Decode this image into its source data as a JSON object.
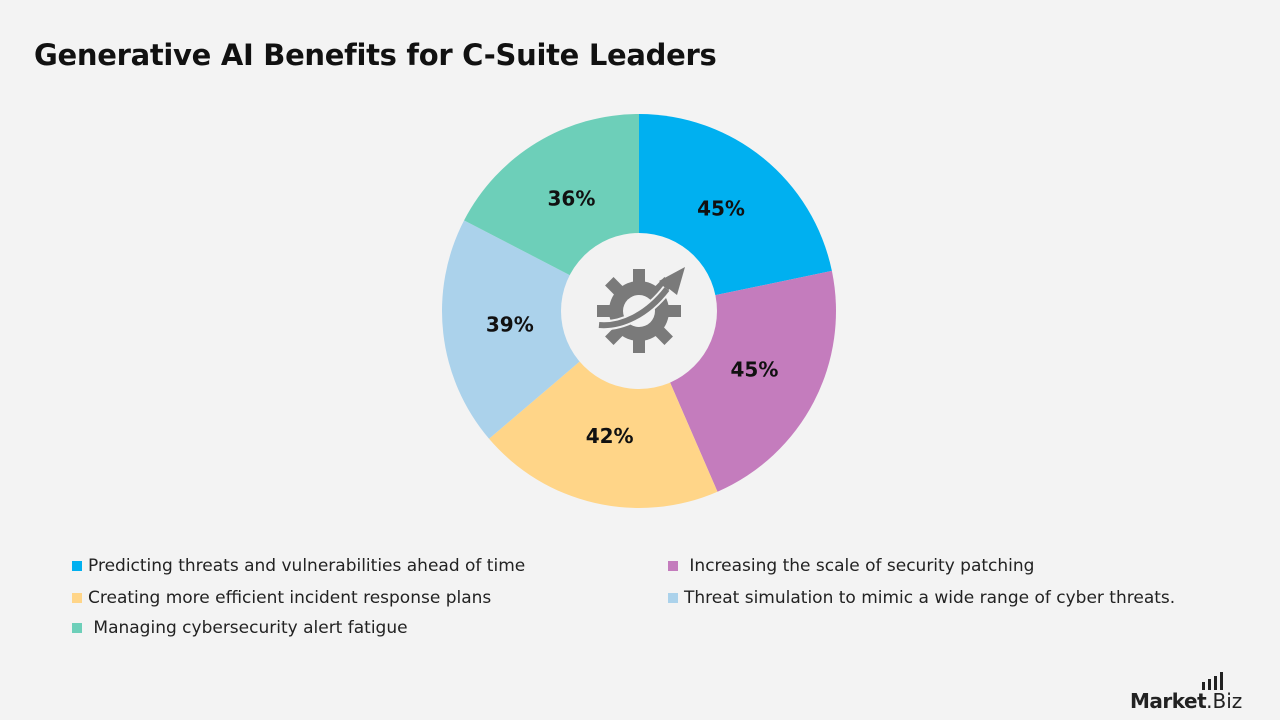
{
  "title": "Generative AI Benefits for C-Suite Leaders",
  "chart_data": {
    "type": "pie",
    "title": "Generative AI Benefits for C-Suite Leaders",
    "series": [
      {
        "name": "Predicting threats and vulnerabilities ahead of time",
        "value": 45,
        "label": "45%",
        "color": "#00b0f0"
      },
      {
        "name": "Increasing the scale of security patching",
        "value": 45,
        "label": "45%",
        "color": "#c47cbd"
      },
      {
        "name": "Creating more efficient incident response plans",
        "value": 42,
        "label": "42%",
        "color": "#ffd588"
      },
      {
        "name": "Threat simulation to mimic a wide range of cyber threats.",
        "value": 39,
        "label": "39%",
        "color": "#abd2eb"
      },
      {
        "name": "Managing cybersecurity alert fatigue",
        "value": 36,
        "label": "36%",
        "color": "#6dcfb9"
      }
    ],
    "legend_position": "bottom",
    "center_icon": "gear-arrow-icon"
  },
  "legend": [
    {
      "label": "Predicting threats and vulnerabilities ahead of time",
      "color": "#00b0f0"
    },
    {
      "label": " Increasing the scale of security patching",
      "color": "#c47cbd"
    },
    {
      "label": "Creating more efficient incident response plans",
      "color": "#ffd588"
    },
    {
      "label": "Threat simulation to mimic a wide range of cyber threats.",
      "color": "#abd2eb"
    },
    {
      "label": " Managing cybersecurity alert fatigue",
      "color": "#6dcfb9"
    }
  ],
  "logo": {
    "part1": "Market",
    "part2": ".Biz"
  }
}
